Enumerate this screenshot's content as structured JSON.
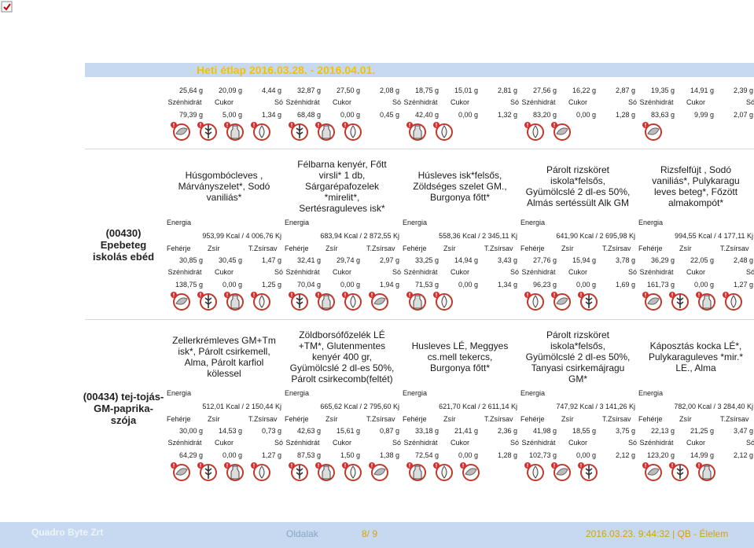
{
  "header": {
    "title": "Heti étlap 2016.03.28. - 2016.04.01."
  },
  "labels": {
    "energy": "Energia",
    "protein": "Fehérje",
    "fat": "Zsír",
    "satfat": "T.Zsírsav",
    "carb": "Szénhidrát",
    "sugar": "Cukor",
    "salt": "Só"
  },
  "carryover": {
    "row1": [
      "25,64 g",
      "20,09 g",
      "4,44 g",
      "32,87 g",
      "27,50 g",
      "2,08 g",
      "18,75 g",
      "15,01 g",
      "2,81 g",
      "27,56 g",
      "16,22 g",
      "2,87 g",
      "19,35 g",
      "14,91 g",
      "2,39 g"
    ],
    "row2": [
      "79,39 g",
      "5,00 g",
      "1,34 g",
      "68,48 g",
      "0,00 g",
      "0,45 g",
      "42,40 g",
      "0,00 g",
      "1,32 g",
      "83,20 g",
      "0,00 g",
      "1,28 g",
      "83,63 g",
      "9,99 g",
      "2,07 g"
    ]
  },
  "menus": [
    {
      "name": "(00430) Epebeteg iskolás ebéd",
      "dishes": [
        "Húsgombócleves , Márványszelet*, Sodó vaniliás*",
        "Félbarna kenyér, Főtt virsli* 1 db, Sárgarépafozelek *mirelit*, Sertésraguleves isk*",
        "Húsleves isk*felsős, Zöldséges szelet GM., Burgonya főtt*",
        "Párolt rizsköret iskola*felsős, Gyümölcslé 2 dl-es 50%, Almás sertéssült Alk GM",
        "Rizsfelfújt , Sodó vaniliás*, Pulykaragu leves beteg*, Főzött almakompót*"
      ],
      "energy": [
        "953,99 Kcal / 4 006,76 Kj",
        "683,94 Kcal / 2 872,55 Kj",
        "558,36 Kcal / 2 345,11 Kj",
        "641,90 Kcal / 2 695,98 Kj",
        "994,55 Kcal / 4 177,11 Kj"
      ],
      "row1": [
        "30,85 g",
        "30,45 g",
        "1,47 g",
        "32,41 g",
        "29,74 g",
        "2,97 g",
        "33,25 g",
        "14,94 g",
        "3,43 g",
        "27,76 g",
        "15,94 g",
        "3,78 g",
        "36,29 g",
        "22,05 g",
        "2,48 g"
      ],
      "row2": [
        "138,75 g",
        "0,00 g",
        "1,25 g",
        "70,04 g",
        "0,00 g",
        "1,94 g",
        "71,53 g",
        "0,00 g",
        "1,34 g",
        "96,23 g",
        "0,00 g",
        "1,69 g",
        "161,73 g",
        "0,00 g",
        "1,27 g"
      ]
    },
    {
      "name": "(00434) tej-tojás-GM-paprika-szója",
      "dishes": [
        "Zellerkrémleves GM+Tm isk*, Párolt csirkemell, Alma, Párolt karfiol kölessel",
        "Zöldborsófőzelék LÉ +TM*, Glutenmentes kenyér 400 gr, Gyümölcslé 2 dl-es 50%, Párolt csirkecomb(feltét)",
        "Husleves LÉ, Meggyes cs.mell tekercs, Burgonya főtt*",
        "Párolt rizsköret iskola*felsős, Gyümölcslé 2 dl-es 50%, Tanyasi csirkemájragu GM*",
        "Káposztás kocka LÉ*, Pulykaraguleves *mir.* LE., Alma"
      ],
      "energy": [
        "512,01 Kcal / 2 150,44 Kj",
        "665,62 Kcal / 2 795,60 Kj",
        "621,70 Kcal / 2 611,14 Kj",
        "747,92 Kcal / 3 141,26 Kj",
        "782,00 Kcal / 3 284,40 Kj"
      ],
      "row1": [
        "30,00 g",
        "14,53 g",
        "0,73 g",
        "42,63 g",
        "15,61 g",
        "0,87 g",
        "33,18 g",
        "21,41 g",
        "2,36 g",
        "41,98 g",
        "18,55 g",
        "3,75 g",
        "22,13 g",
        "21,25 g",
        "3,47 g"
      ],
      "row2": [
        "64,29 g",
        "0,00 g",
        "1,27 g",
        "87,53 g",
        "1,50 g",
        "1,38 g",
        "72,54 g",
        "0,00 g",
        "1,28 g",
        "102,73 g",
        "0,00 g",
        "2,12 g",
        "123,20 g",
        "14,99 g",
        "2,12 g"
      ]
    }
  ],
  "footer": {
    "company": "Quadro Byte Zrt",
    "pages_label": "Oldalak",
    "page": "8/ 9",
    "timestamp": "2016.03.23. 9:44:32 | QB - Élelem"
  }
}
